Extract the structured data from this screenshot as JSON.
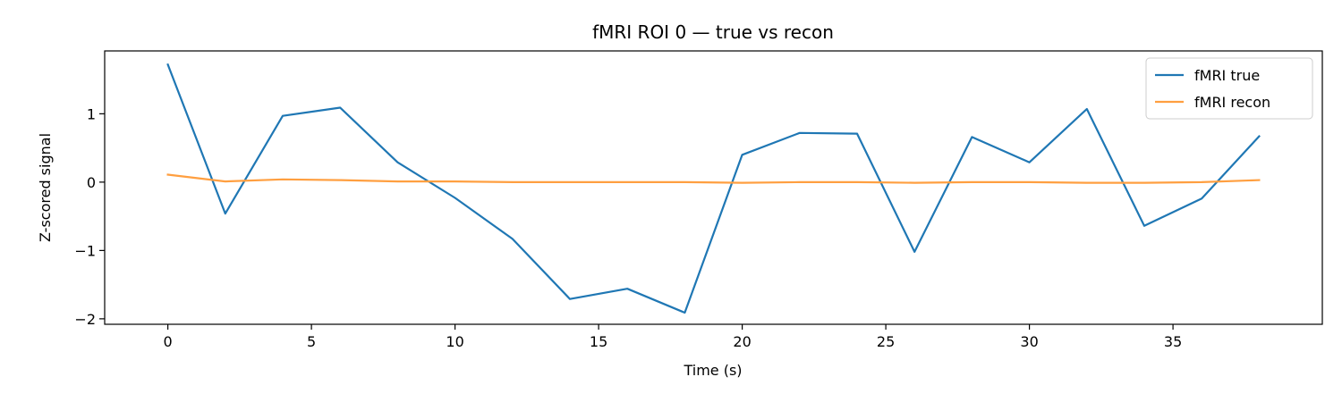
{
  "chart_data": {
    "type": "line",
    "title": "fMRI ROI 0 — true vs recon",
    "xlabel": "Time (s)",
    "ylabel": "Z-scored signal",
    "xlim": [
      -2.2,
      40.2
    ],
    "ylim": [
      -2.08,
      1.92
    ],
    "x_ticks": [
      0,
      5,
      10,
      15,
      20,
      25,
      30,
      35
    ],
    "y_ticks": [
      -2,
      -1,
      0,
      1
    ],
    "y_tick_labels": [
      "−2",
      "−1",
      "0",
      "1"
    ],
    "grid": false,
    "legend_position": "top-right",
    "x": [
      0,
      2,
      4,
      6,
      8,
      10,
      12,
      14,
      16,
      18,
      20,
      22,
      24,
      26,
      28,
      30,
      32,
      34,
      36,
      38
    ],
    "series": [
      {
        "name": "fMRI true",
        "color": "#1f77b4",
        "values": [
          1.72,
          -0.46,
          0.97,
          1.09,
          0.29,
          -0.23,
          -0.83,
          -1.71,
          -1.56,
          -1.91,
          0.4,
          0.72,
          0.71,
          -1.02,
          0.66,
          0.29,
          1.07,
          -0.64,
          -0.24,
          0.67
        ]
      },
      {
        "name": "fMRI recon",
        "color": "#ff9f40",
        "values": [
          0.11,
          0.01,
          0.04,
          0.03,
          0.01,
          0.01,
          0.0,
          0.0,
          0.0,
          0.0,
          -0.01,
          0.0,
          0.0,
          -0.01,
          0.0,
          0.0,
          -0.01,
          -0.01,
          0.0,
          0.03
        ]
      }
    ]
  }
}
